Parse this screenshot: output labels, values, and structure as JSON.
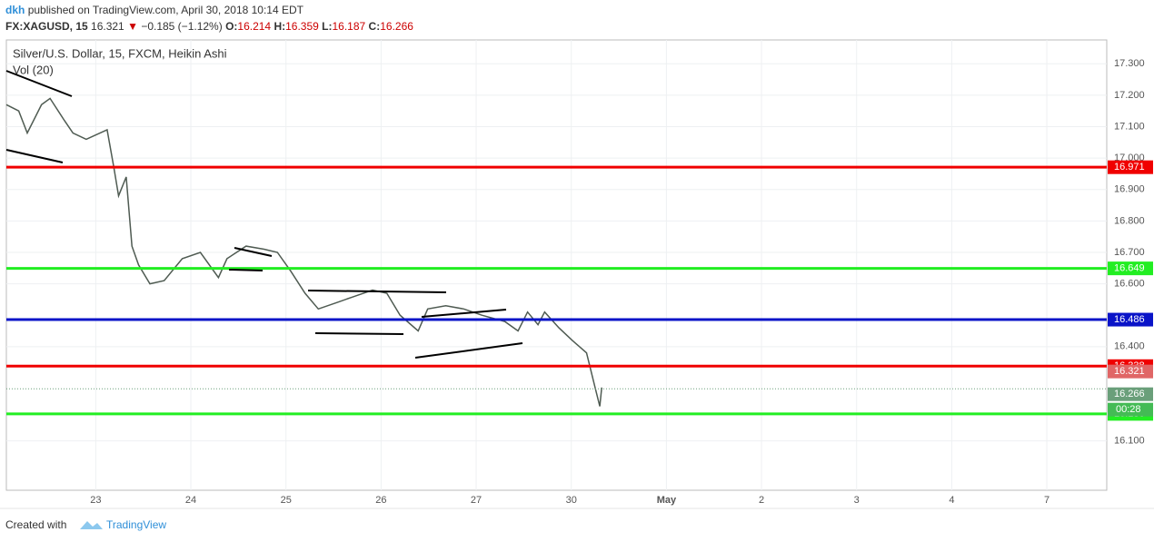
{
  "header": {
    "author": "dkh",
    "published": "published on TradingView.com, April 30, 2018 10:14 EDT",
    "symbol": "FX:XAGUSD, 15",
    "last": "16.321",
    "arrow": "▼",
    "change": "−0.185 (−1.12%)",
    "o_label": "O:",
    "o": "16.214",
    "h_label": "H:",
    "h": "16.359",
    "l_label": "L:",
    "l": "16.187",
    "c_label": "C:",
    "c": "16.266"
  },
  "chart_data": {
    "type": "line",
    "title": "Silver/U.S. Dollar, 15, FXCM, Heikin Ashi",
    "subtitle": "Vol (20)",
    "series": [
      {
        "name": "XAGUSD",
        "color": "#4f5b52",
        "x": [
          -0.94,
          -0.81,
          -0.72,
          -0.57,
          -0.48,
          -0.33,
          -0.24,
          -0.1,
          0.12,
          0.19,
          0.24,
          0.32,
          0.38,
          0.45,
          0.57,
          0.72,
          0.91,
          1.1,
          1.29,
          1.38,
          1.58,
          1.77,
          1.91,
          2.05,
          2.2,
          2.34,
          2.53,
          2.72,
          2.91,
          3.06,
          3.2,
          3.39,
          3.49,
          3.68,
          3.87,
          4.06,
          4.3,
          4.44,
          4.54,
          4.65,
          4.72,
          4.87,
          5.01,
          5.16,
          5.25,
          5.3,
          5.32
        ],
        "values": [
          17.17,
          17.15,
          17.08,
          17.17,
          17.19,
          17.12,
          17.08,
          17.06,
          17.09,
          16.97,
          16.88,
          16.94,
          16.72,
          16.66,
          16.6,
          16.61,
          16.68,
          16.7,
          16.62,
          16.68,
          16.72,
          16.71,
          16.7,
          16.64,
          16.57,
          16.52,
          16.54,
          16.56,
          16.58,
          16.57,
          16.5,
          16.45,
          16.52,
          16.53,
          16.52,
          16.5,
          16.48,
          16.45,
          16.51,
          16.47,
          16.51,
          16.46,
          16.42,
          16.38,
          16.27,
          16.21,
          16.27
        ]
      }
    ],
    "levels": [
      {
        "value": 16.971,
        "color": "#f00000"
      },
      {
        "value": 16.649,
        "color": "#22ee22"
      },
      {
        "value": 16.486,
        "color": "#0a14c8"
      },
      {
        "value": 16.338,
        "color": "#f00000"
      },
      {
        "value": 16.186,
        "color": "#22ee22"
      }
    ],
    "price_labels": [
      {
        "value": 16.321,
        "color": "#e06666"
      },
      {
        "value": 16.266,
        "color": "#6a9f7a"
      }
    ],
    "countdown": "00:28",
    "xlim": [
      -0.94,
      10.63
    ],
    "ylim": [
      15.943,
      17.376
    ],
    "xticks": [
      {
        "value": 0,
        "label": "23"
      },
      {
        "value": 1,
        "label": "24"
      },
      {
        "value": 2,
        "label": "25"
      },
      {
        "value": 3,
        "label": "26"
      },
      {
        "value": 4,
        "label": "27"
      },
      {
        "value": 5,
        "label": "30"
      },
      {
        "value": 6,
        "label": "May"
      },
      {
        "value": 7,
        "label": "2"
      },
      {
        "value": 8,
        "label": "3"
      },
      {
        "value": 9,
        "label": "4"
      },
      {
        "value": 10,
        "label": "7"
      }
    ],
    "yticks": [
      {
        "value": 17.3,
        "label": "17.300"
      },
      {
        "value": 17.2,
        "label": "17.200"
      },
      {
        "value": 17.1,
        "label": "17.100"
      },
      {
        "value": 17.0,
        "label": "17.000"
      },
      {
        "value": 16.9,
        "label": "16.900"
      },
      {
        "value": 16.8,
        "label": "16.800"
      },
      {
        "value": 16.7,
        "label": "16.700"
      },
      {
        "value": 16.6,
        "label": "16.600"
      },
      {
        "value": 16.4,
        "label": "16.400"
      },
      {
        "value": 16.1,
        "label": "16.100"
      }
    ],
    "grid": true
  },
  "footer": {
    "created": "Created with",
    "brand": "TradingView"
  }
}
